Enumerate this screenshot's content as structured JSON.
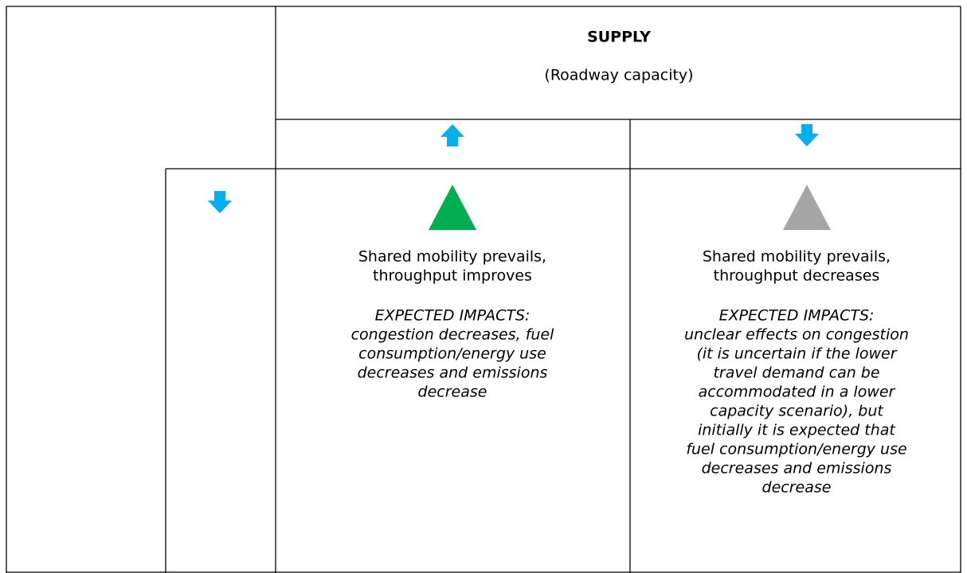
{
  "header": {
    "title": "SUPPLY",
    "subtitle": "(Roadway capacity)"
  },
  "cells": [
    {
      "heading": [
        "Shared mobility prevails,",
        "throughput improves"
      ],
      "impacts": [
        "EXPECTED IMPACTS:",
        "congestion decreases, fuel",
        "consumption/energy use",
        "decreases and emissions",
        "decrease"
      ]
    },
    {
      "heading": [
        "Shared mobility prevails,",
        "throughput decreases"
      ],
      "impacts": [
        "EXPECTED IMPACTS:",
        "unclear effects on congestion",
        "(it is uncertain if the lower",
        "travel demand can be",
        "accommodated in a lower",
        "capacity scenario), but",
        "initially it is expected that",
        "fuel consumption/energy use",
        "decreases and emissions",
        "decrease"
      ]
    }
  ]
}
